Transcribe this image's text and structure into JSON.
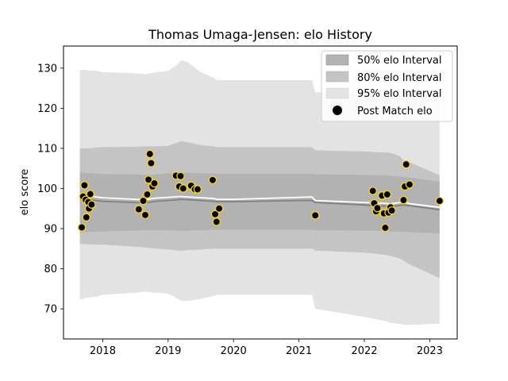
{
  "chart_data": {
    "type": "scatter",
    "title": "Thomas Umaga-Jensen: elo History",
    "xlabel": "",
    "ylabel": "elo score",
    "xlim": [
      2017.4,
      2023.42
    ],
    "ylim": [
      62.5,
      135.5
    ],
    "xticks": [
      2018,
      2019,
      2020,
      2021,
      2022,
      2023
    ],
    "yticks": [
      70,
      80,
      90,
      100,
      110,
      120,
      130
    ],
    "grid": false,
    "legend_position": "upper right",
    "legend": [
      "50% elo Interval",
      "80% elo Interval",
      "95% elo Interval",
      "Post Match elo"
    ],
    "colors": {
      "band50": "#999999",
      "band80": "#c4c4c4",
      "band95": "#e3e3e3",
      "mean_line": "#808080",
      "median_line": "#ffffff",
      "point_fill": "#000000",
      "point_edge": "#ffd700",
      "point_outline": "#3b5e8c"
    },
    "bands": {
      "x": [
        2017.65,
        2017.7,
        2017.75,
        2017.8,
        2017.9,
        2018.0,
        2018.5,
        2018.65,
        2018.8,
        2019.0,
        2019.15,
        2019.2,
        2019.3,
        2019.5,
        2019.7,
        2019.75,
        2020.0,
        2021.0,
        2021.2,
        2021.25,
        2022.0,
        2022.3,
        2022.4,
        2022.55,
        2022.6,
        2022.7,
        2023.15
      ],
      "p95_upper": [
        129.5,
        129.5,
        129.5,
        129.4,
        129.3,
        129.0,
        128.7,
        128.5,
        128.9,
        129.3,
        131.0,
        132.0,
        131.5,
        129.0,
        127.5,
        127.0,
        127.0,
        127.0,
        127.0,
        124.0,
        123.5,
        123.0,
        122.5,
        123.5,
        124.5,
        124.3,
        123.0
      ],
      "p95_lower": [
        72.3,
        72.5,
        72.7,
        72.8,
        73.0,
        73.5,
        74.0,
        74.3,
        74.0,
        73.8,
        72.5,
        72.0,
        72.0,
        72.5,
        73.2,
        73.5,
        73.5,
        73.5,
        73.5,
        70.0,
        68.0,
        67.0,
        66.5,
        66.2,
        66.0,
        66.0,
        66.3
      ],
      "p80_upper": [
        110.0,
        110.0,
        110.0,
        110.0,
        110.2,
        110.3,
        110.4,
        110.5,
        110.5,
        110.6,
        111.5,
        111.8,
        111.5,
        110.8,
        110.5,
        110.3,
        110.3,
        110.3,
        110.3,
        109.5,
        109.2,
        109.0,
        108.9,
        108.0,
        107.0,
        106.5,
        103.3
      ],
      "p80_lower": [
        86.2,
        86.2,
        86.1,
        86.1,
        86.0,
        86.0,
        85.5,
        85.3,
        85.0,
        84.8,
        84.5,
        84.5,
        84.6,
        84.8,
        85.0,
        85.0,
        85.0,
        85.0,
        85.0,
        84.5,
        84.0,
        83.5,
        83.2,
        82.5,
        82.0,
        81.0,
        77.7
      ],
      "p50_upper": [
        104.0,
        103.9,
        103.8,
        103.8,
        103.7,
        103.6,
        103.5,
        103.4,
        103.5,
        103.8,
        104.0,
        104.0,
        103.9,
        103.8,
        103.7,
        103.6,
        103.6,
        103.6,
        103.6,
        103.5,
        103.4,
        103.3,
        103.2,
        103.0,
        102.9,
        102.7,
        101.7
      ],
      "p50_lower": [
        89.0,
        89.1,
        89.1,
        89.2,
        89.2,
        89.3,
        89.5,
        89.6,
        89.6,
        89.6,
        89.5,
        89.5,
        89.5,
        89.6,
        89.7,
        89.7,
        89.7,
        89.7,
        89.7,
        89.6,
        89.5,
        89.4,
        89.3,
        89.2,
        89.2,
        89.1,
        88.8
      ],
      "mean": [
        97.2,
        97.3,
        97.3,
        97.2,
        97.0,
        96.8,
        96.5,
        96.4,
        96.8,
        97.0,
        97.2,
        97.3,
        97.2,
        97.0,
        96.8,
        96.7,
        96.7,
        97.0,
        97.0,
        96.5,
        95.9,
        95.6,
        95.5,
        95.8,
        95.9,
        95.7,
        94.7
      ],
      "median": [
        98.0,
        98.2,
        98.3,
        98.2,
        97.9,
        97.7,
        97.3,
        97.2,
        97.6,
        97.8,
        98.0,
        98.0,
        97.9,
        97.7,
        97.5,
        97.3,
        97.3,
        97.8,
        97.9,
        97.0,
        96.5,
        96.3,
        96.2,
        96.5,
        96.6,
        96.2,
        95.3
      ]
    },
    "points": [
      {
        "x": 2017.68,
        "y": 90.3
      },
      {
        "x": 2017.7,
        "y": 98.0
      },
      {
        "x": 2017.72,
        "y": 100.8
      },
      {
        "x": 2017.74,
        "y": 97.2
      },
      {
        "x": 2017.75,
        "y": 92.8
      },
      {
        "x": 2017.78,
        "y": 96.6
      },
      {
        "x": 2017.79,
        "y": 95.0
      },
      {
        "x": 2017.81,
        "y": 98.6
      },
      {
        "x": 2017.83,
        "y": 96.0
      },
      {
        "x": 2018.55,
        "y": 94.8
      },
      {
        "x": 2018.62,
        "y": 96.9
      },
      {
        "x": 2018.65,
        "y": 93.4
      },
      {
        "x": 2018.68,
        "y": 98.5
      },
      {
        "x": 2018.7,
        "y": 102.2
      },
      {
        "x": 2018.72,
        "y": 108.6
      },
      {
        "x": 2018.74,
        "y": 106.3
      },
      {
        "x": 2018.76,
        "y": 100.5
      },
      {
        "x": 2018.79,
        "y": 101.3
      },
      {
        "x": 2019.12,
        "y": 103.2
      },
      {
        "x": 2019.17,
        "y": 100.5
      },
      {
        "x": 2019.19,
        "y": 103.1
      },
      {
        "x": 2019.23,
        "y": 100.0
      },
      {
        "x": 2019.35,
        "y": 100.7
      },
      {
        "x": 2019.41,
        "y": 99.8
      },
      {
        "x": 2019.45,
        "y": 99.8
      },
      {
        "x": 2019.68,
        "y": 102.1
      },
      {
        "x": 2019.72,
        "y": 93.6
      },
      {
        "x": 2019.74,
        "y": 91.7
      },
      {
        "x": 2019.78,
        "y": 95.0
      },
      {
        "x": 2021.25,
        "y": 93.3
      },
      {
        "x": 2022.13,
        "y": 99.4
      },
      {
        "x": 2022.15,
        "y": 96.3
      },
      {
        "x": 2022.18,
        "y": 94.3
      },
      {
        "x": 2022.2,
        "y": 95.1
      },
      {
        "x": 2022.27,
        "y": 98.2
      },
      {
        "x": 2022.3,
        "y": 93.8
      },
      {
        "x": 2022.32,
        "y": 90.2
      },
      {
        "x": 2022.35,
        "y": 98.5
      },
      {
        "x": 2022.37,
        "y": 94.0
      },
      {
        "x": 2022.4,
        "y": 95.3
      },
      {
        "x": 2022.42,
        "y": 94.5
      },
      {
        "x": 2022.6,
        "y": 97.1
      },
      {
        "x": 2022.62,
        "y": 100.5
      },
      {
        "x": 2022.64,
        "y": 106.0
      },
      {
        "x": 2022.69,
        "y": 101.0
      },
      {
        "x": 2023.15,
        "y": 96.9
      }
    ]
  }
}
